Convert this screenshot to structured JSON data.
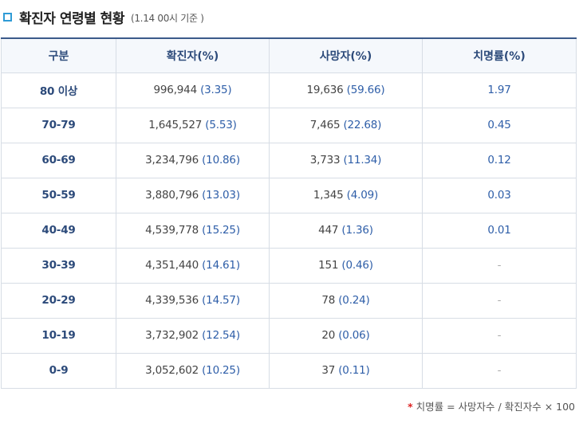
{
  "title": {
    "text": "확진자 연령별 현황",
    "sub": "(1.14 00시 기준 )"
  },
  "table": {
    "headers": [
      "구분",
      "확진자(%)",
      "사망자(%)",
      "치명률(%)"
    ],
    "rows": [
      {
        "age": "80 이상",
        "confirmed": "996,944",
        "confirmed_pct": "(3.35)",
        "deaths": "19,636",
        "deaths_pct": "(59.66)",
        "fatality": "1.97"
      },
      {
        "age": "70-79",
        "confirmed": "1,645,527",
        "confirmed_pct": "(5.53)",
        "deaths": "7,465",
        "deaths_pct": "(22.68)",
        "fatality": "0.45"
      },
      {
        "age": "60-69",
        "confirmed": "3,234,796",
        "confirmed_pct": "(10.86)",
        "deaths": "3,733",
        "deaths_pct": "(11.34)",
        "fatality": "0.12"
      },
      {
        "age": "50-59",
        "confirmed": "3,880,796",
        "confirmed_pct": "(13.03)",
        "deaths": "1,345",
        "deaths_pct": "(4.09)",
        "fatality": "0.03"
      },
      {
        "age": "40-49",
        "confirmed": "4,539,778",
        "confirmed_pct": "(15.25)",
        "deaths": "447",
        "deaths_pct": "(1.36)",
        "fatality": "0.01"
      },
      {
        "age": "30-39",
        "confirmed": "4,351,440",
        "confirmed_pct": "(14.61)",
        "deaths": "151",
        "deaths_pct": "(0.46)",
        "fatality": "-"
      },
      {
        "age": "20-29",
        "confirmed": "4,339,536",
        "confirmed_pct": "(14.57)",
        "deaths": "78",
        "deaths_pct": "(0.24)",
        "fatality": "-"
      },
      {
        "age": "10-19",
        "confirmed": "3,732,902",
        "confirmed_pct": "(12.54)",
        "deaths": "20",
        "deaths_pct": "(0.06)",
        "fatality": "-"
      },
      {
        "age": "0-9",
        "confirmed": "3,052,602",
        "confirmed_pct": "(10.25)",
        "deaths": "37",
        "deaths_pct": "(0.11)",
        "fatality": "-"
      }
    ]
  },
  "footnote": {
    "star": "*",
    "text": "치명률 = 사망자수 / 확진자수 × 100"
  },
  "colors": {
    "accent": "#2f9bd6",
    "header_text": "#2c4a7a",
    "pct_text": "#2e5ea8",
    "star": "#dd2222"
  }
}
